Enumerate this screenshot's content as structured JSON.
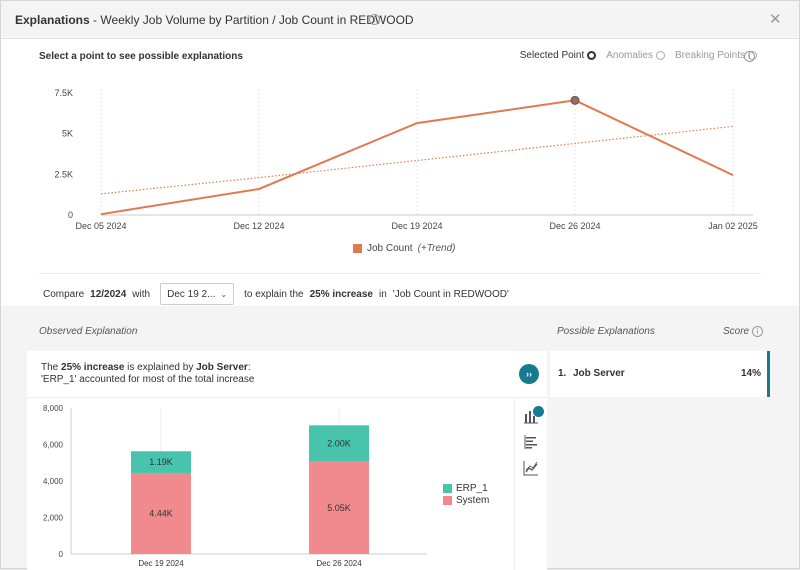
{
  "header": {
    "title_bold": "Explanations",
    "title_rest": " - Weekly Job Volume by Partition / Job Count in REDWOOD",
    "close_glyph": "✕"
  },
  "top": {
    "prompt": "Select a point to see possible explanations",
    "options": [
      {
        "label": "Selected Point",
        "active": true
      },
      {
        "label": "Anomalies",
        "active": false
      },
      {
        "label": "Breaking Points",
        "active": false
      }
    ],
    "legend_label": "Job Count",
    "legend_trend": "(+Trend)"
  },
  "chart_data": {
    "type": "line",
    "x": [
      "Dec 05 2024",
      "Dec 12 2024",
      "Dec 19 2024",
      "Dec 26 2024",
      "Jan 02 2025"
    ],
    "series": [
      {
        "name": "Job Count",
        "values": [
          50,
          1600,
          5650,
          7050,
          2450
        ],
        "color": "#e07a4e"
      },
      {
        "name": "Trend",
        "values": [
          1300,
          2300,
          3350,
          4400,
          5450
        ],
        "color": "#e07a4e",
        "style": "dotted"
      }
    ],
    "yticks": [
      "0",
      "2.5K",
      "5K",
      "7.5K"
    ],
    "ylim": [
      0,
      7500
    ],
    "selected_index": 3,
    "grid": "vertical"
  },
  "compare": {
    "prefix": "Compare",
    "period": "12/2024",
    "with": "with",
    "dropdown_value": "Dec 19 2...",
    "middle": "to explain the",
    "change": "25% increase",
    "in_text": "in",
    "metric": "'Job Count in REDWOOD'"
  },
  "observed": {
    "label": "Observed Explanation",
    "line1_a": "The ",
    "line1_b": "25% increase",
    "line1_c": " is explained by ",
    "line1_d": "Job Server",
    "line1_e": ":",
    "line2_a": "'ERP_1'",
    "line2_b": " accounted for most of the total increase",
    "expand_glyph": "››"
  },
  "bar_chart": {
    "type": "bar",
    "categories": [
      "Dec 19 2024",
      "Dec 26 2024"
    ],
    "series": [
      {
        "name": "System",
        "values": [
          4440,
          5050
        ],
        "labels": [
          "4.44K",
          "5.05K"
        ],
        "color": "#f08a8e"
      },
      {
        "name": "ERP_1",
        "values": [
          1190,
          2000
        ],
        "labels": [
          "1.19K",
          "2.00K"
        ],
        "color": "#48c4ad"
      }
    ],
    "yticks": [
      "0",
      "2,000",
      "4,000",
      "6,000",
      "8,000"
    ],
    "ylim": [
      0,
      8000
    ],
    "legend": [
      {
        "name": "ERP_1",
        "color": "#48c4ad"
      },
      {
        "name": "System",
        "color": "#f08a8e"
      }
    ]
  },
  "possible": {
    "label": "Possible Explanations",
    "score_label": "Score",
    "items": [
      {
        "num": "1.",
        "name": "Job Server",
        "score": "14%"
      }
    ]
  }
}
